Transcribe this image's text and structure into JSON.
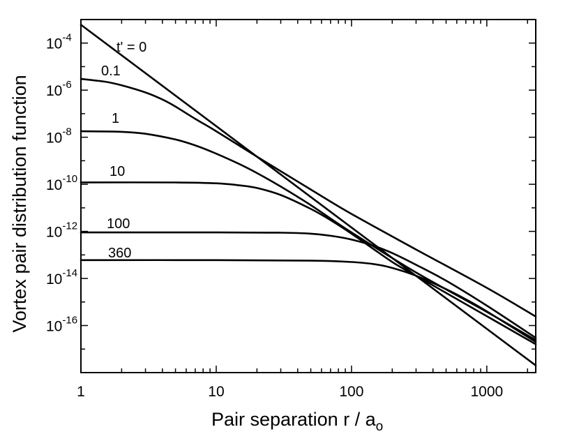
{
  "chart_data": {
    "type": "line",
    "title": "",
    "xlabel": "Pair separation  r / a",
    "xlabel_subscript": "o",
    "ylabel": "Vortex pair distribution function",
    "xscale": "log",
    "yscale": "log",
    "xlim": [
      1,
      2300
    ],
    "ylim": [
      1e-18,
      0.001
    ],
    "x_ticks": [
      {
        "value": 1,
        "label": "1"
      },
      {
        "value": 10,
        "label": "10"
      },
      {
        "value": 100,
        "label": "100"
      },
      {
        "value": 1000,
        "label": "1000"
      }
    ],
    "y_ticks": [
      {
        "value": 0.0001,
        "base": "10",
        "exp": "-4"
      },
      {
        "value": 1e-06,
        "base": "10",
        "exp": "-6"
      },
      {
        "value": 1e-08,
        "base": "10",
        "exp": "-8"
      },
      {
        "value": 1e-10,
        "base": "10",
        "exp": "-10"
      },
      {
        "value": 1e-12,
        "base": "10",
        "exp": "-12"
      },
      {
        "value": 1e-14,
        "base": "10",
        "exp": "-14"
      },
      {
        "value": 1e-16,
        "base": "10",
        "exp": "-16"
      }
    ],
    "grid": false,
    "series": [
      {
        "name": "t' = 0",
        "x": [
          1,
          2300
        ],
        "y": [
          0.0006,
          2e-18
        ]
      },
      {
        "name": "0.1",
        "x": [
          1,
          1.5,
          2,
          3,
          4,
          5,
          7,
          10,
          20,
          50,
          100,
          300,
          1000,
          2300
        ],
        "y": [
          3e-06,
          2.3e-06,
          1.6e-06,
          8e-07,
          4e-07,
          2e-07,
          6e-08,
          1.8e-08,
          1.5e-09,
          6e-11,
          5.5e-12,
          1.7e-13,
          4e-15,
          2.4e-16
        ]
      },
      {
        "name": "1",
        "x": [
          1,
          2,
          3,
          5,
          7,
          10,
          15,
          20,
          30,
          50,
          100,
          300,
          1000,
          2300
        ],
        "y": [
          1.8e-08,
          1.7e-08,
          1.4e-08,
          8e-09,
          4.5e-09,
          2e-09,
          7e-10,
          3e-10,
          8e-11,
          1.3e-11,
          9e-13,
          1.8e-14,
          3.8e-16,
          2.4e-17
        ]
      },
      {
        "name": "10",
        "x": [
          1,
          5,
          10,
          15,
          20,
          30,
          50,
          70,
          100,
          200,
          300,
          1000,
          2300
        ],
        "y": [
          1.2e-10,
          1.2e-10,
          1.1e-10,
          9e-11,
          7e-11,
          3.5e-11,
          9e-12,
          3e-12,
          8e-13,
          5e-14,
          1.3e-14,
          2.5e-16,
          1.6e-17
        ]
      },
      {
        "name": "100",
        "x": [
          1,
          10,
          30,
          50,
          70,
          100,
          150,
          200,
          300,
          500,
          1000,
          2300
        ],
        "y": [
          9e-13,
          9e-13,
          8.8e-13,
          8e-13,
          6.5e-13,
          4.5e-13,
          2.3e-13,
          1.2e-13,
          3.8e-14,
          8e-15,
          7e-16,
          3e-17
        ]
      },
      {
        "name": "360",
        "x": [
          1,
          10,
          50,
          100,
          150,
          200,
          300,
          500,
          700,
          1000,
          2300
        ],
        "y": [
          6e-14,
          6e-14,
          5.7e-14,
          5e-14,
          4e-14,
          2.8e-14,
          1.3e-14,
          3.5e-15,
          1.3e-15,
          4e-16,
          2e-17
        ]
      }
    ]
  }
}
